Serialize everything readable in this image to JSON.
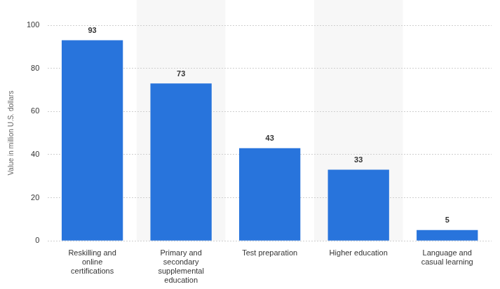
{
  "chart_data": {
    "type": "bar",
    "ylabel": "Value in million U.S. dollars",
    "categories": [
      "Reskilling and online certifications",
      "Primary and secondary supplemental education",
      "Test preparation",
      "Higher education",
      "Language and casual learning"
    ],
    "values": [
      93,
      73,
      43,
      33,
      5
    ],
    "color": "#2874dc",
    "ylim": [
      0,
      100
    ],
    "yticks": [
      0,
      20,
      40,
      60,
      80,
      100
    ],
    "grid": true,
    "data_labels": true
  }
}
